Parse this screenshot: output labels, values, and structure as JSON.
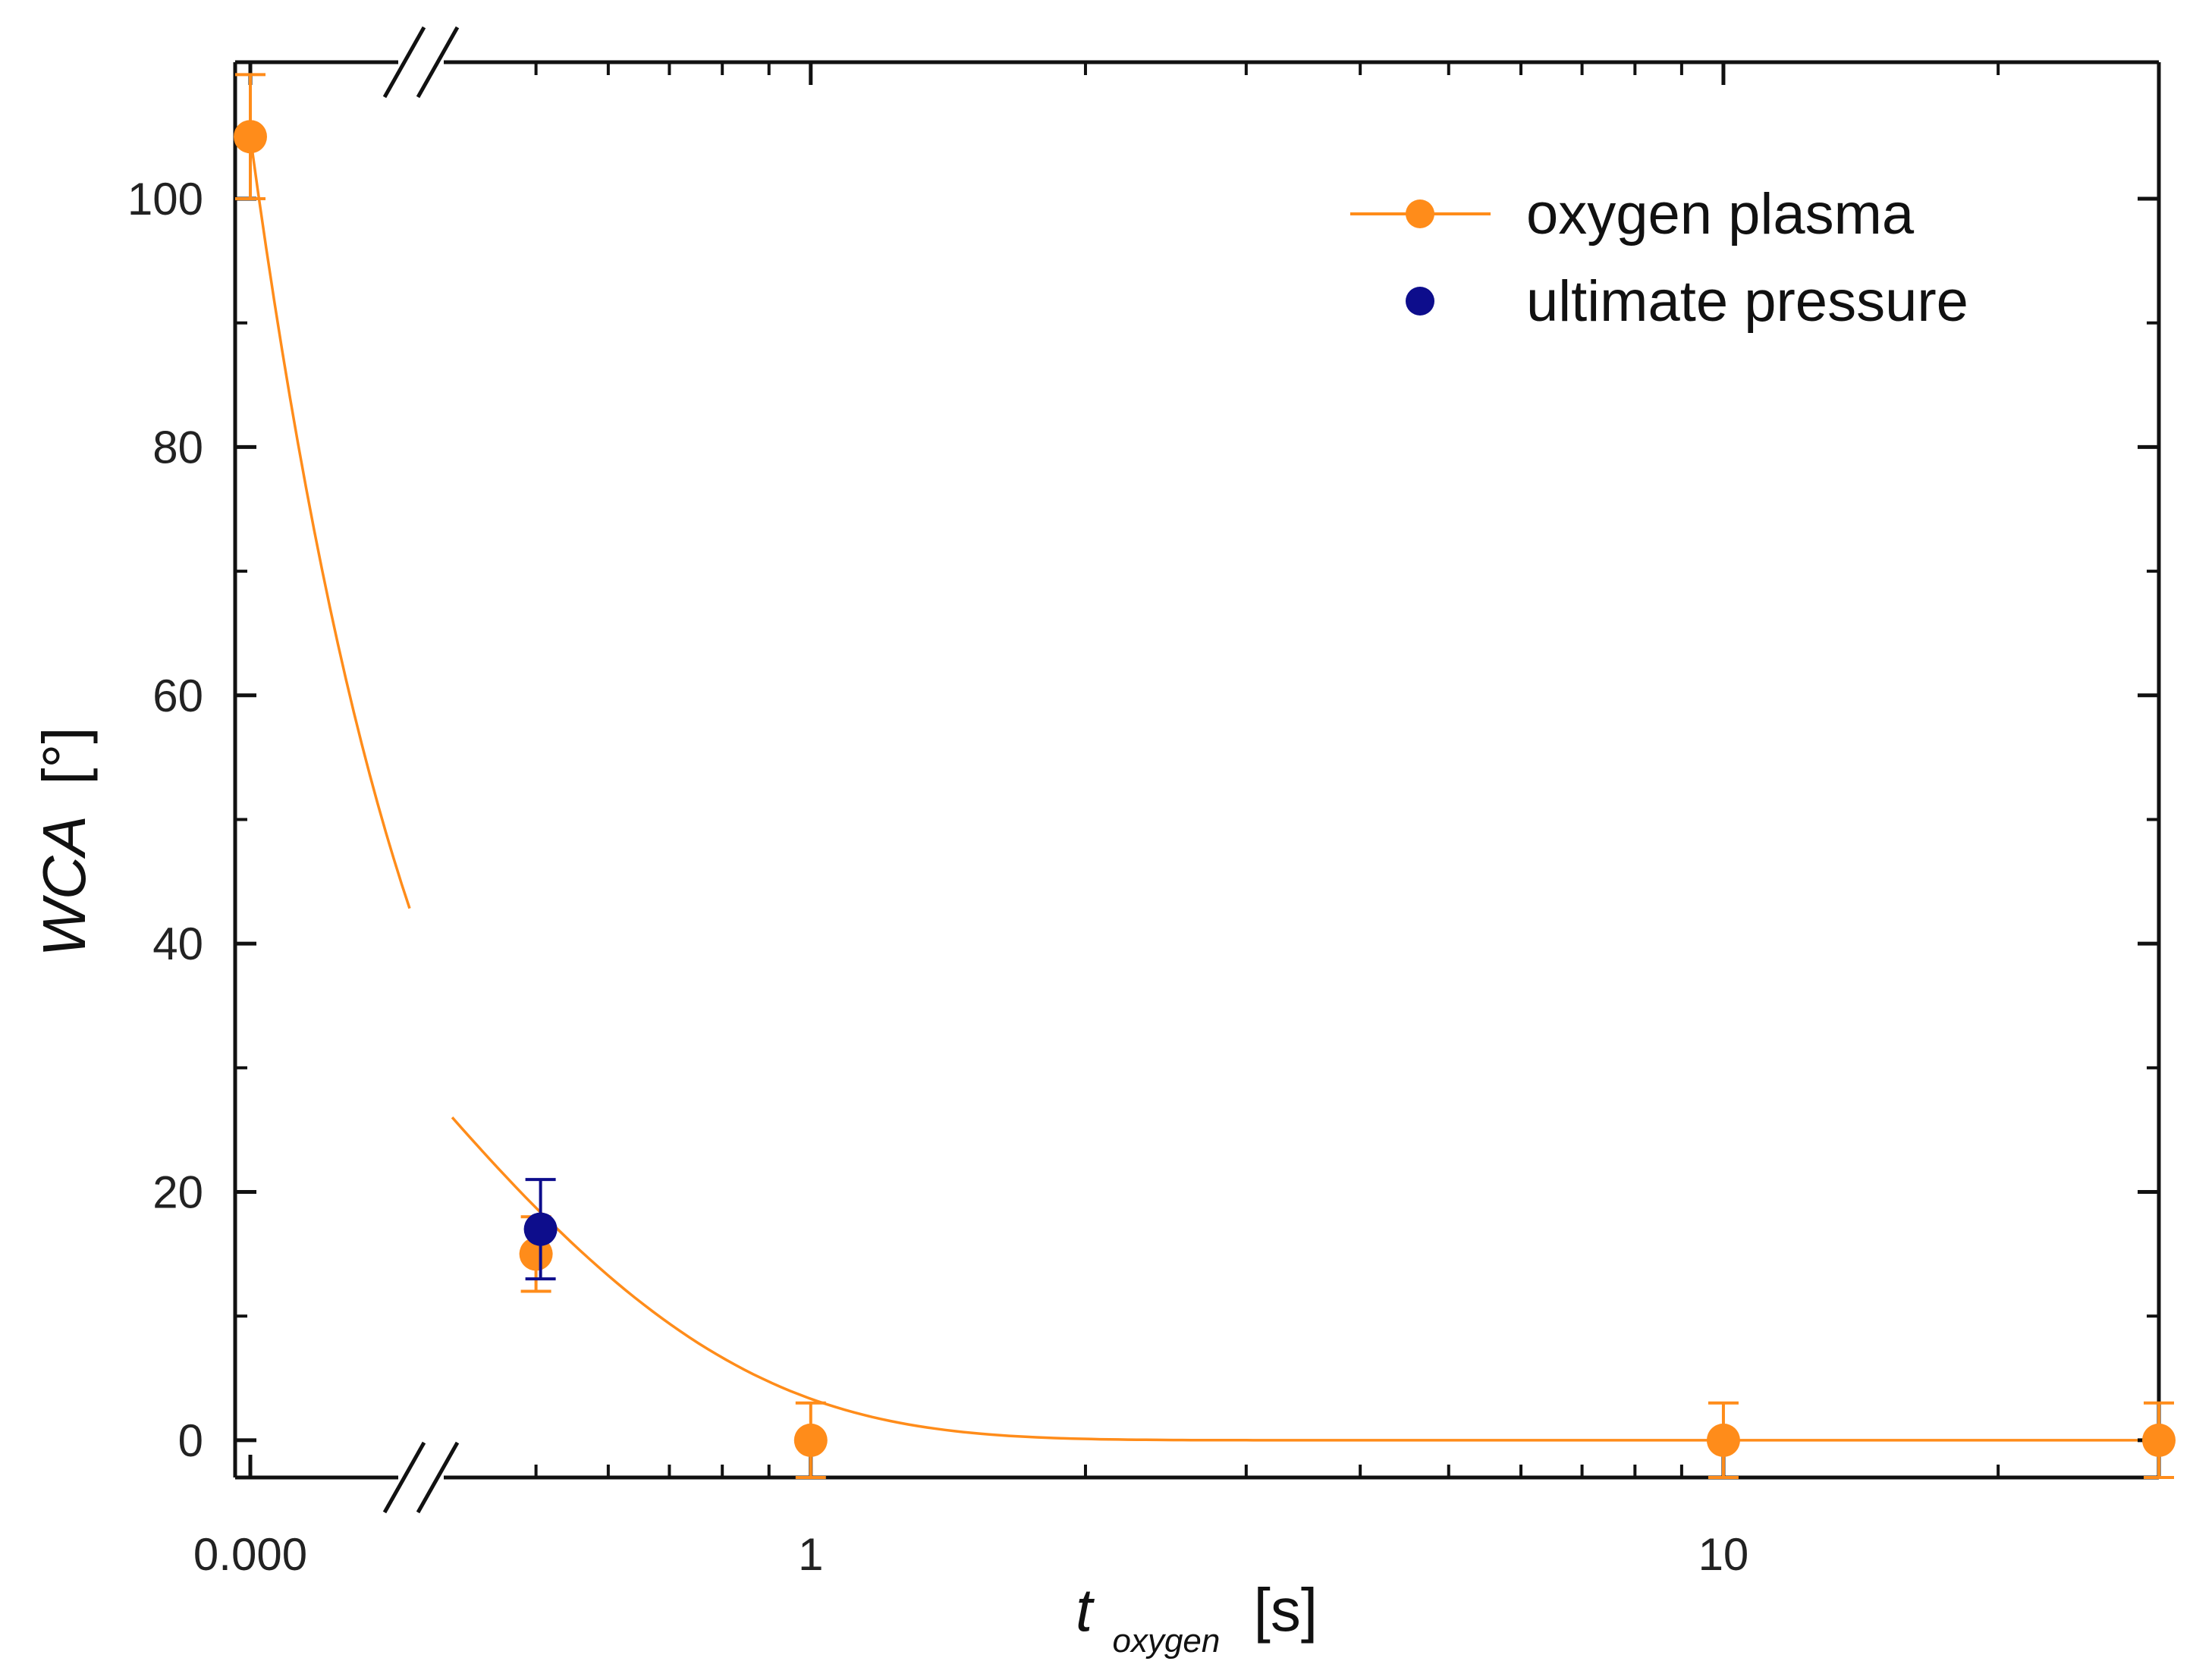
{
  "chart_data": {
    "type": "scatter",
    "title": "",
    "xlabel": {
      "main": "t",
      "subscript": "oxygen",
      "unit": "[s]"
    },
    "ylabel": {
      "main": "WCA",
      "unit": "[°]"
    },
    "x_scale": "broken-log",
    "x_break_between": [
      0.0,
      0.4
    ],
    "x_log_range": [
      0.4,
      30
    ],
    "ylim": [
      -3,
      111
    ],
    "x_ticks": [
      {
        "value": 0,
        "label": "0.000"
      },
      {
        "value": 1,
        "label": "1"
      },
      {
        "value": 10,
        "label": "10"
      }
    ],
    "y_ticks": [
      0,
      20,
      40,
      60,
      80,
      100
    ],
    "y_tick_labels": [
      "0",
      "20",
      "40",
      "60",
      "80",
      "100"
    ],
    "series": [
      {
        "name": "oxygen plasma",
        "color": "#ff8c1a",
        "marker": "circle",
        "points": [
          {
            "x": 0.0,
            "y": 105,
            "err": 5
          },
          {
            "x": 0.5,
            "y": 15,
            "err": 3
          },
          {
            "x": 1,
            "y": 0,
            "err": 3
          },
          {
            "x": 10,
            "y": 0,
            "err": 3
          },
          {
            "x": 30,
            "y": 0,
            "err": 3
          }
        ],
        "fit": {
          "type": "exponential-decay",
          "y0": 0,
          "amplitude": 105,
          "decay_constant_s": 0.29
        }
      },
      {
        "name": "ultimate pressure",
        "color": "#0d0d8c",
        "marker": "circle",
        "points": [
          {
            "x": 0.5,
            "y": 17,
            "err": 4
          }
        ]
      }
    ],
    "legend": {
      "position": "top-right",
      "entries": [
        "oxygen plasma",
        "ultimate pressure"
      ]
    },
    "grid": false
  }
}
